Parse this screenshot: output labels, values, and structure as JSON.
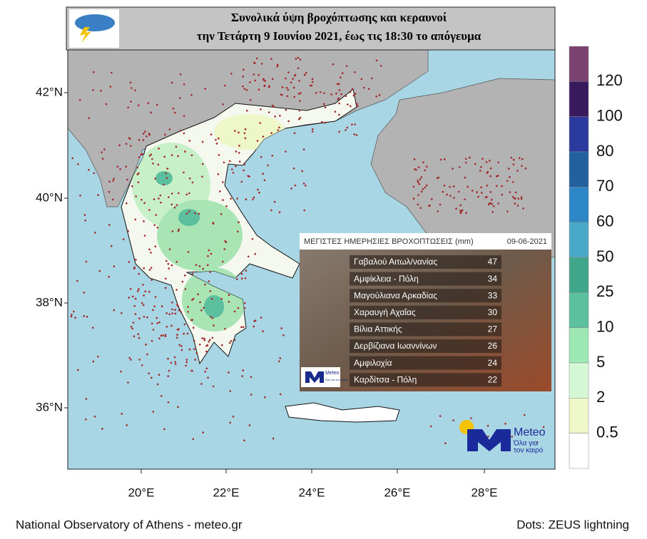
{
  "header": {
    "title_line1": "Συνολικά ύψη βροχόπτωσης  και κεραυνοί",
    "title_line2": "την Τετάρτη 9 Ιουνίου 2021, έως τις 18:30 το απόγευμα"
  },
  "map": {
    "lat_labels": [
      "42°N",
      "40°N",
      "38°N",
      "36°N"
    ],
    "lon_labels": [
      "20°E",
      "22°E",
      "24°E",
      "26°E",
      "28°E"
    ]
  },
  "colorbar": {
    "labels": [
      120,
      100,
      80,
      70,
      60,
      50,
      25,
      10,
      5,
      2,
      0.5
    ]
  },
  "table": {
    "title": "ΜΕΓΙΣΤΕΣ ΗΜΕΡΗΣΙΕΣ ΒΡΟΧΟΠΤΩΣΕΙΣ (mm)",
    "date": "09-06-2021",
    "rows": [
      {
        "name": "Γαβαλού Αιτωλ/νανίας",
        "value": 47
      },
      {
        "name": "Αμφίκλεια - Πόλη",
        "value": 34
      },
      {
        "name": "Μαγούλιανα Αρκαδίας",
        "value": 33
      },
      {
        "name": "Χαραυγή Αχαΐας",
        "value": 30
      },
      {
        "name": "Βίλια Αττικής",
        "value": 27
      },
      {
        "name": "Δερβίζιανα Ιωαννίνων",
        "value": 26
      },
      {
        "name": "Αμφιλοχία",
        "value": 24
      },
      {
        "name": "Καρδίτσα - Πόλη",
        "value": 22
      }
    ],
    "logo_name": "Meteo",
    "logo_tagline": "Όλα για τον καιρό"
  },
  "logo": {
    "name": "Meteo",
    "tagline_line1": "Όλα για",
    "tagline_line2": "τον καιρό"
  },
  "footer": {
    "left": "National Observatory of Athens - meteo.gr",
    "right": "Dots: ZEUS lightning"
  }
}
